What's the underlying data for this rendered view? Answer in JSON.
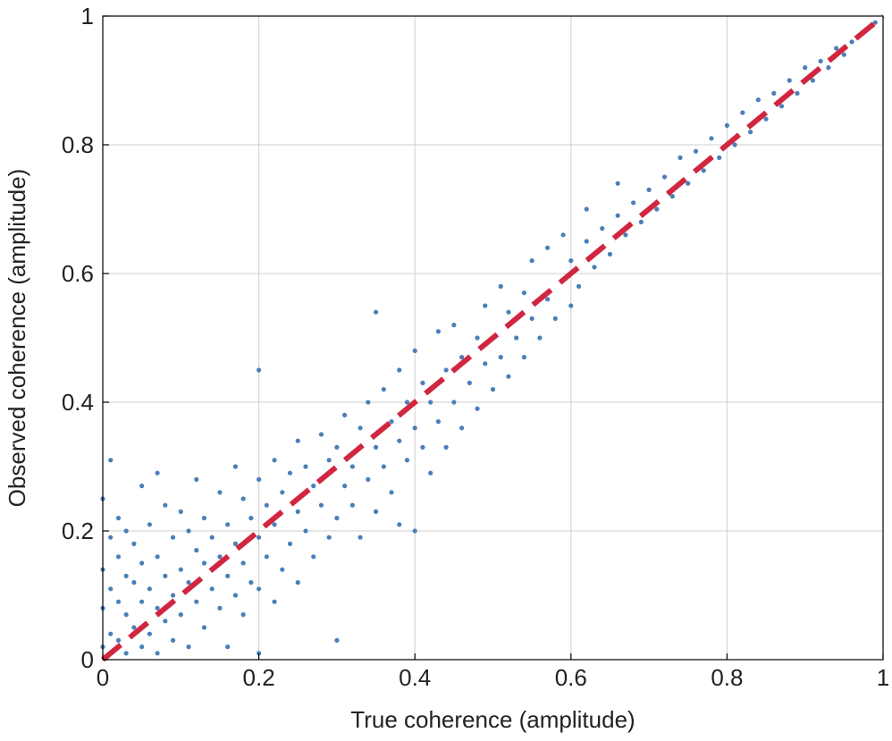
{
  "chart_data": {
    "type": "scatter",
    "title": "",
    "xlabel": "True coherence (amplitude)",
    "ylabel": "Observed coherence (amplitude)",
    "xlim": [
      0,
      1
    ],
    "ylim": [
      0,
      1
    ],
    "xticks": [
      0,
      0.2,
      0.4,
      0.6,
      0.8,
      1
    ],
    "yticks": [
      0,
      0.2,
      0.4,
      0.6,
      0.8,
      1
    ],
    "xtick_labels": [
      "0",
      "0.2",
      "0.4",
      "0.6",
      "0.8",
      "1"
    ],
    "ytick_labels": [
      "0",
      "0.2",
      "0.4",
      "0.6",
      "0.8",
      "1"
    ],
    "grid": true,
    "legend": "none",
    "colors": {
      "points": "#4a7fb9",
      "reference_line": "#d0263f",
      "grid": "#cfcfcf",
      "axis": "#000000"
    },
    "series": [
      {
        "kind": "points",
        "points": [
          [
            0.0,
            0.02
          ],
          [
            0.0,
            0.08
          ],
          [
            0.0,
            0.14
          ],
          [
            0.0,
            0.25
          ],
          [
            0.01,
            0.04
          ],
          [
            0.01,
            0.11
          ],
          [
            0.01,
            0.19
          ],
          [
            0.01,
            0.31
          ],
          [
            0.02,
            0.03
          ],
          [
            0.02,
            0.09
          ],
          [
            0.02,
            0.16
          ],
          [
            0.02,
            0.22
          ],
          [
            0.03,
            0.01
          ],
          [
            0.03,
            0.07
          ],
          [
            0.03,
            0.13
          ],
          [
            0.03,
            0.2
          ],
          [
            0.04,
            0.05
          ],
          [
            0.04,
            0.12
          ],
          [
            0.04,
            0.18
          ],
          [
            0.05,
            0.02
          ],
          [
            0.05,
            0.09
          ],
          [
            0.05,
            0.15
          ],
          [
            0.05,
            0.27
          ],
          [
            0.06,
            0.04
          ],
          [
            0.06,
            0.11
          ],
          [
            0.06,
            0.21
          ],
          [
            0.07,
            0.01
          ],
          [
            0.07,
            0.08
          ],
          [
            0.07,
            0.16
          ],
          [
            0.07,
            0.29
          ],
          [
            0.08,
            0.06
          ],
          [
            0.08,
            0.13
          ],
          [
            0.08,
            0.24
          ],
          [
            0.09,
            0.03
          ],
          [
            0.09,
            0.1
          ],
          [
            0.09,
            0.19
          ],
          [
            0.1,
            0.07
          ],
          [
            0.1,
            0.14
          ],
          [
            0.1,
            0.23
          ],
          [
            0.11,
            0.02
          ],
          [
            0.11,
            0.12
          ],
          [
            0.11,
            0.2
          ],
          [
            0.12,
            0.09
          ],
          [
            0.12,
            0.17
          ],
          [
            0.12,
            0.28
          ],
          [
            0.13,
            0.05
          ],
          [
            0.13,
            0.15
          ],
          [
            0.13,
            0.22
          ],
          [
            0.14,
            0.11
          ],
          [
            0.14,
            0.19
          ],
          [
            0.15,
            0.08
          ],
          [
            0.15,
            0.16
          ],
          [
            0.15,
            0.26
          ],
          [
            0.16,
            0.02
          ],
          [
            0.16,
            0.13
          ],
          [
            0.16,
            0.21
          ],
          [
            0.17,
            0.1
          ],
          [
            0.17,
            0.18
          ],
          [
            0.17,
            0.3
          ],
          [
            0.18,
            0.07
          ],
          [
            0.18,
            0.15
          ],
          [
            0.18,
            0.25
          ],
          [
            0.19,
            0.12
          ],
          [
            0.19,
            0.22
          ],
          [
            0.2,
            0.45
          ],
          [
            0.2,
            0.01
          ],
          [
            0.2,
            0.11
          ],
          [
            0.2,
            0.19
          ],
          [
            0.2,
            0.28
          ],
          [
            0.21,
            0.16
          ],
          [
            0.21,
            0.24
          ],
          [
            0.22,
            0.09
          ],
          [
            0.22,
            0.21
          ],
          [
            0.22,
            0.31
          ],
          [
            0.23,
            0.14
          ],
          [
            0.23,
            0.26
          ],
          [
            0.24,
            0.18
          ],
          [
            0.24,
            0.29
          ],
          [
            0.25,
            0.12
          ],
          [
            0.25,
            0.23
          ],
          [
            0.25,
            0.34
          ],
          [
            0.26,
            0.2
          ],
          [
            0.26,
            0.3
          ],
          [
            0.27,
            0.16
          ],
          [
            0.27,
            0.27
          ],
          [
            0.28,
            0.24
          ],
          [
            0.28,
            0.35
          ],
          [
            0.29,
            0.19
          ],
          [
            0.29,
            0.31
          ],
          [
            0.3,
            0.03
          ],
          [
            0.3,
            0.22
          ],
          [
            0.3,
            0.33
          ],
          [
            0.31,
            0.27
          ],
          [
            0.31,
            0.38
          ],
          [
            0.32,
            0.24
          ],
          [
            0.32,
            0.3
          ],
          [
            0.33,
            0.19
          ],
          [
            0.33,
            0.36
          ],
          [
            0.34,
            0.28
          ],
          [
            0.34,
            0.4
          ],
          [
            0.35,
            0.54
          ],
          [
            0.35,
            0.23
          ],
          [
            0.35,
            0.33
          ],
          [
            0.36,
            0.3
          ],
          [
            0.36,
            0.42
          ],
          [
            0.37,
            0.26
          ],
          [
            0.37,
            0.37
          ],
          [
            0.38,
            0.21
          ],
          [
            0.38,
            0.34
          ],
          [
            0.38,
            0.45
          ],
          [
            0.39,
            0.31
          ],
          [
            0.39,
            0.4
          ],
          [
            0.4,
            0.2
          ],
          [
            0.4,
            0.36
          ],
          [
            0.4,
            0.48
          ],
          [
            0.41,
            0.33
          ],
          [
            0.41,
            0.43
          ],
          [
            0.42,
            0.29
          ],
          [
            0.42,
            0.4
          ],
          [
            0.43,
            0.37
          ],
          [
            0.43,
            0.51
          ],
          [
            0.44,
            0.33
          ],
          [
            0.44,
            0.45
          ],
          [
            0.45,
            0.4
          ],
          [
            0.45,
            0.52
          ],
          [
            0.46,
            0.36
          ],
          [
            0.46,
            0.47
          ],
          [
            0.47,
            0.43
          ],
          [
            0.48,
            0.39
          ],
          [
            0.48,
            0.5
          ],
          [
            0.49,
            0.46
          ],
          [
            0.49,
            0.55
          ],
          [
            0.5,
            0.42
          ],
          [
            0.5,
            0.5
          ],
          [
            0.51,
            0.47
          ],
          [
            0.51,
            0.58
          ],
          [
            0.52,
            0.44
          ],
          [
            0.52,
            0.54
          ],
          [
            0.53,
            0.5
          ],
          [
            0.54,
            0.47
          ],
          [
            0.54,
            0.57
          ],
          [
            0.55,
            0.53
          ],
          [
            0.55,
            0.62
          ],
          [
            0.56,
            0.5
          ],
          [
            0.57,
            0.56
          ],
          [
            0.57,
            0.64
          ],
          [
            0.58,
            0.53
          ],
          [
            0.59,
            0.59
          ],
          [
            0.59,
            0.66
          ],
          [
            0.6,
            0.55
          ],
          [
            0.6,
            0.62
          ],
          [
            0.61,
            0.58
          ],
          [
            0.62,
            0.65
          ],
          [
            0.62,
            0.7
          ],
          [
            0.63,
            0.61
          ],
          [
            0.64,
            0.67
          ],
          [
            0.65,
            0.63
          ],
          [
            0.66,
            0.69
          ],
          [
            0.66,
            0.74
          ],
          [
            0.67,
            0.66
          ],
          [
            0.68,
            0.71
          ],
          [
            0.69,
            0.68
          ],
          [
            0.7,
            0.73
          ],
          [
            0.71,
            0.7
          ],
          [
            0.72,
            0.75
          ],
          [
            0.73,
            0.72
          ],
          [
            0.74,
            0.78
          ],
          [
            0.75,
            0.74
          ],
          [
            0.76,
            0.79
          ],
          [
            0.77,
            0.76
          ],
          [
            0.78,
            0.81
          ],
          [
            0.79,
            0.78
          ],
          [
            0.8,
            0.83
          ],
          [
            0.81,
            0.8
          ],
          [
            0.82,
            0.85
          ],
          [
            0.83,
            0.82
          ],
          [
            0.84,
            0.87
          ],
          [
            0.85,
            0.84
          ],
          [
            0.86,
            0.88
          ],
          [
            0.87,
            0.86
          ],
          [
            0.88,
            0.9
          ],
          [
            0.89,
            0.88
          ],
          [
            0.9,
            0.92
          ],
          [
            0.91,
            0.9
          ],
          [
            0.92,
            0.93
          ],
          [
            0.93,
            0.92
          ],
          [
            0.94,
            0.95
          ],
          [
            0.95,
            0.94
          ],
          [
            0.96,
            0.96
          ],
          [
            0.97,
            0.97
          ],
          [
            0.98,
            0.98
          ],
          [
            0.99,
            0.99
          ]
        ]
      },
      {
        "kind": "reference_line",
        "style": "dashed",
        "x": [
          0,
          1
        ],
        "y": [
          0,
          1
        ]
      }
    ]
  }
}
